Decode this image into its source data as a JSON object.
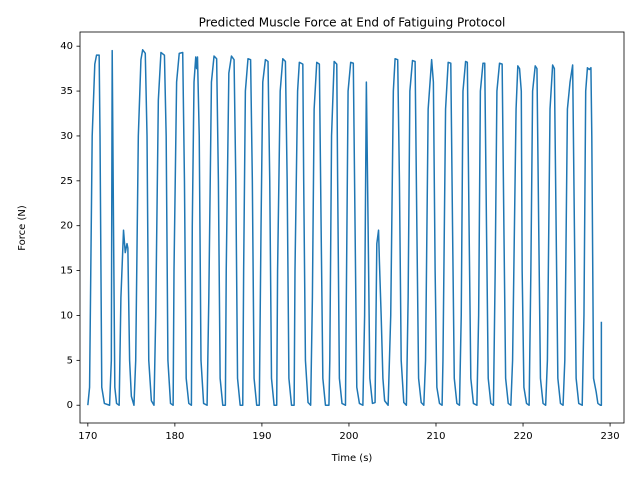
{
  "chart_data": {
    "type": "line",
    "title": "Predicted Muscle Force at End of Fatiguing Protocol",
    "xlabel": "Time (s)",
    "ylabel": "Force (N)",
    "x": [
      170,
      170.2,
      170.5,
      170.8,
      171,
      171.3,
      171.4,
      171.6,
      171.9,
      172.5,
      172.7,
      172.8,
      172.95,
      173.1,
      173.3,
      173.6,
      173.8,
      174.1,
      174.3,
      174.5,
      174.6,
      174.8,
      175,
      175.3,
      175.5,
      175.8,
      176.1,
      176.3,
      176.6,
      176.8,
      177,
      177.3,
      177.6,
      177.8,
      178.1,
      178.4,
      178.8,
      179,
      179.2,
      179.5,
      179.8,
      179.9,
      180.2,
      180.5,
      180.9,
      181.1,
      181.3,
      181.6,
      181.9,
      182,
      182.2,
      182.4,
      182.5,
      182.6,
      182.8,
      183,
      183.3,
      183.7,
      183.9,
      184.2,
      184.5,
      184.8,
      185,
      185.2,
      185.5,
      185.8,
      185.9,
      186.2,
      186.5,
      186.8,
      187,
      187.2,
      187.5,
      187.8,
      187.9,
      188.1,
      188.4,
      188.7,
      188.9,
      189.1,
      189.4,
      189.7,
      189.9,
      190.1,
      190.4,
      190.7,
      190.9,
      191.1,
      191.4,
      191.7,
      191.8,
      192.1,
      192.4,
      192.7,
      192.9,
      193.1,
      193.4,
      193.7,
      193.8,
      194.1,
      194.3,
      194.7,
      194.8,
      195,
      195.3,
      195.6,
      195.8,
      196,
      196.3,
      196.6,
      196.8,
      197,
      197.3,
      197.7,
      197.8,
      198,
      198.3,
      198.6,
      198.7,
      198.9,
      199.2,
      199.6,
      199.7,
      199.9,
      200.2,
      200.5,
      200.7,
      200.9,
      201.2,
      201.6,
      201.8,
      202,
      202.2,
      202.4,
      202.7,
      203,
      203.2,
      203.4,
      203.5,
      203.7,
      203.9,
      204.1,
      204.5,
      204.8,
      205.1,
      205.3,
      205.6,
      205.8,
      206,
      206.3,
      206.6,
      206.8,
      207,
      207.3,
      207.6,
      207.8,
      208,
      208.3,
      208.6,
      208.8,
      209.1,
      209.5,
      209.7,
      209.9,
      210.1,
      210.4,
      210.7,
      210.8,
      211.1,
      211.4,
      211.7,
      211.9,
      212.1,
      212.4,
      212.7,
      212.9,
      213.1,
      213.4,
      213.6,
      213.8,
      214,
      214.3,
      214.7,
      214.9,
      215.1,
      215.4,
      215.6,
      215.8,
      216,
      216.3,
      216.6,
      216.8,
      217,
      217.3,
      217.6,
      217.8,
      218,
      218.3,
      218.6,
      218.8,
      219.2,
      219.4,
      219.6,
      219.8,
      219.9,
      220.1,
      220.4,
      220.7,
      220.9,
      221.1,
      221.4,
      221.6,
      221.8,
      222,
      222.3,
      222.6,
      222.8,
      223.1,
      223.4,
      223.6,
      223.8,
      224,
      224.3,
      224.6,
      224.8,
      225.1,
      225.4,
      225.7,
      225.9,
      226.1,
      226.4,
      226.8,
      227,
      227.2,
      227.4,
      227.6,
      227.8,
      227.9,
      228.1,
      228.4,
      228.6,
      228.9,
      229,
      229
    ],
    "series": [
      {
        "color": "#1f77b4",
        "values": [
          0,
          2,
          30,
          38,
          39,
          39,
          30,
          2,
          0.2,
          0,
          5,
          39.5,
          20,
          2,
          0.2,
          0,
          12,
          19.5,
          17,
          18,
          17.5,
          5,
          1,
          0,
          5,
          30,
          38.5,
          39.6,
          39.2,
          30,
          5,
          0.5,
          0,
          10,
          34,
          39.3,
          39,
          30,
          5,
          0.2,
          0,
          15,
          36,
          39.2,
          39.3,
          25,
          3,
          0.2,
          0,
          20,
          36,
          38.8,
          37.5,
          38.8,
          30,
          5,
          0.2,
          0,
          12,
          36,
          38.9,
          38.6,
          25,
          3,
          0,
          0,
          15,
          37,
          38.9,
          38.5,
          25,
          3,
          0,
          0,
          15,
          35,
          38.6,
          38.5,
          25,
          3,
          0,
          0,
          20,
          36,
          38.5,
          38.3,
          25,
          3,
          0,
          0,
          15,
          35,
          38.6,
          38.3,
          25,
          3,
          0,
          0,
          15,
          35,
          38.2,
          38,
          25,
          5,
          0.3,
          0,
          12,
          33,
          38.2,
          38,
          20,
          3,
          0,
          0,
          5,
          30,
          38.3,
          38,
          25,
          3,
          0.2,
          0,
          12,
          35,
          38.2,
          38.1,
          20,
          2,
          0.2,
          0,
          10,
          36,
          20,
          3,
          0.2,
          0.3,
          18,
          19.5,
          16,
          10,
          3,
          0.5,
          0,
          10,
          35,
          38.6,
          38.5,
          25,
          5,
          0.3,
          0,
          12,
          35,
          38.4,
          38.3,
          20,
          3,
          0.3,
          0,
          5,
          33,
          38.5,
          36,
          15,
          2,
          0.2,
          0,
          5,
          33,
          38.2,
          38.1,
          20,
          3,
          0.2,
          0,
          10,
          35,
          38.3,
          38.2,
          20,
          3,
          0.2,
          0,
          10,
          35,
          38.1,
          38.1,
          20,
          3,
          0.2,
          0,
          15,
          35,
          38.1,
          38,
          20,
          3,
          0.2,
          0,
          5,
          33,
          37.8,
          37.5,
          35,
          15,
          2,
          0.2,
          0,
          15,
          35,
          37.8,
          37.5,
          20,
          3,
          0.2,
          0,
          5,
          33,
          37.9,
          37.5,
          20,
          3,
          0.2,
          0,
          5,
          33,
          36,
          37.9,
          20,
          3,
          0.2,
          0,
          10,
          35,
          37.6,
          37.4,
          37.6,
          30,
          3,
          1.5,
          0.2,
          0,
          0,
          9.3
        ]
      }
    ],
    "xlim": [
      169.1,
      231.6
    ],
    "xticks": [
      170,
      180,
      190,
      200,
      210,
      220,
      230
    ],
    "ylim": [
      -1.98,
      41.58
    ],
    "yticks": [
      0,
      5,
      10,
      15,
      20,
      25,
      30,
      35,
      40
    ]
  }
}
